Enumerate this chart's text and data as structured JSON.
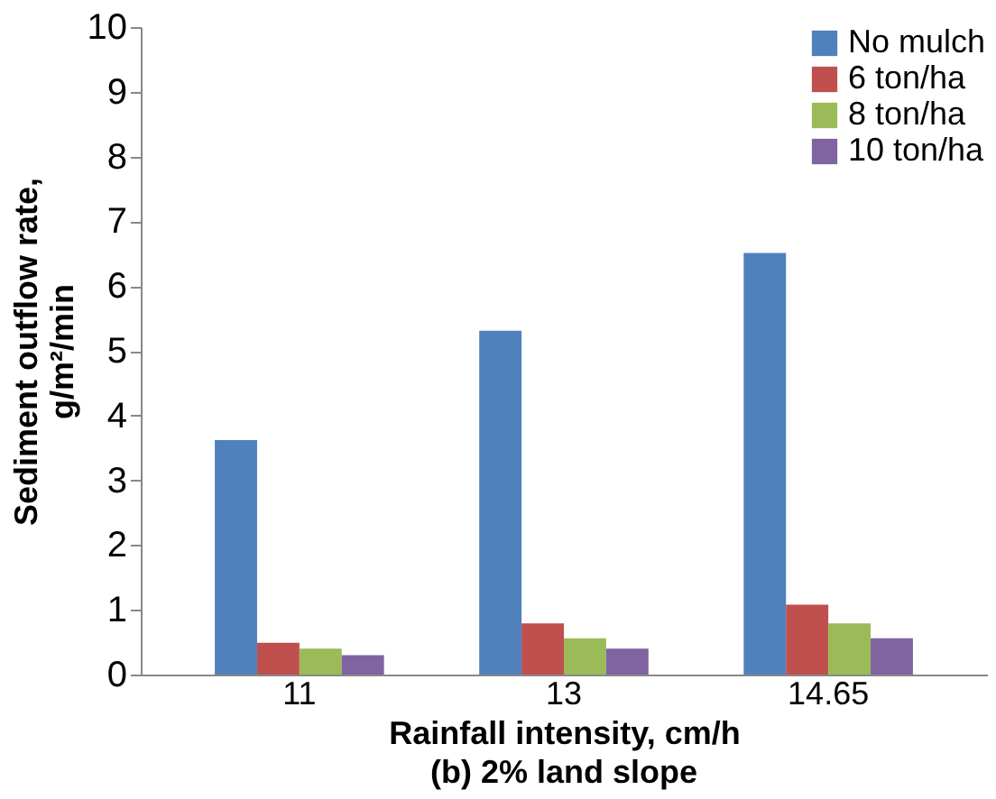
{
  "chart_data": {
    "type": "bar",
    "title": "(b) 2% land slope",
    "xlabel": "Rainfall intensity, cm/h",
    "ylabel": "Sediment outflow rate, g/m²/min",
    "categories": [
      "11",
      "13",
      "14.65"
    ],
    "series": [
      {
        "name": "No mulch",
        "color": "#4f81bd",
        "values": [
          3.62,
          5.31,
          6.51
        ]
      },
      {
        "name": "6 ton/ha",
        "color": "#c0504d",
        "values": [
          0.49,
          0.79,
          1.08
        ]
      },
      {
        "name": "8 ton/ha",
        "color": "#9bbb59",
        "values": [
          0.4,
          0.56,
          0.79
        ]
      },
      {
        "name": "10 ton/ha",
        "color": "#8064a2",
        "values": [
          0.3,
          0.4,
          0.56
        ]
      }
    ],
    "ylim": [
      0,
      10
    ],
    "yticks": [
      0,
      1,
      2,
      3,
      4,
      5,
      6,
      7,
      8,
      9,
      10
    ],
    "grid": false,
    "legend": "top right"
  }
}
